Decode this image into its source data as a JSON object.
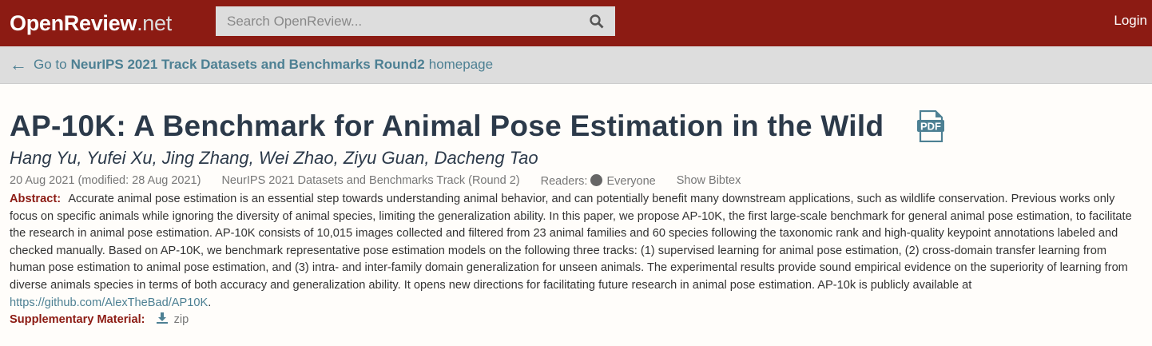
{
  "header": {
    "logo_main": "OpenReview",
    "logo_suffix": ".net",
    "search_placeholder": "Search OpenReview...",
    "login": "Login"
  },
  "nav": {
    "prefix": "Go to",
    "venue": "NeurIPS 2021 Track Datasets and Benchmarks Round2",
    "suffix": "homepage"
  },
  "paper": {
    "title": "AP-10K: A Benchmark for Animal Pose Estimation in the Wild",
    "pdf_label": "PDF",
    "authors": "Hang Yu, Yufei Xu, Jing Zhang, Wei Zhao, Ziyu Guan, Dacheng Tao",
    "date": "20 Aug 2021 (modified: 28 Aug 2021)",
    "venue": "NeurIPS 2021 Datasets and Benchmarks Track (Round 2)",
    "readers_label": "Readers:",
    "readers": "Everyone",
    "bibtex": "Show Bibtex",
    "abstract_label": "Abstract:",
    "abstract": "Accurate animal pose estimation is an essential step towards understanding animal behavior, and can potentially benefit many downstream applications, such as wildlife conservation. Previous works only focus on specific animals while ignoring the diversity of animal species, limiting the generalization ability. In this paper, we propose AP-10K, the first large-scale benchmark for general animal pose estimation, to facilitate the research in animal pose estimation. AP-10K consists of 10,015 images collected and filtered from 23 animal families and 60 species following the taxonomic rank and high-quality keypoint annotations labeled and checked manually. Based on AP-10K, we benchmark representative pose estimation models on the following three tracks: (1) supervised learning for animal pose estimation, (2) cross-domain transfer learning from human pose estimation to animal pose estimation, and (3) intra- and inter-family domain generalization for unseen animals. The experimental results provide sound empirical evidence on the superiority of learning from diverse animals species in terms of both accuracy and generalization ability. It opens new directions for facilitating future research in animal pose estimation. AP-10k is publicly available at",
    "abstract_link": "https://github.com/AlexTheBad/AP10K",
    "abstract_end": ".",
    "supp_label": "Supplementary Material:",
    "supp_link": "zip"
  },
  "colors": {
    "brand": "#8c1b13",
    "link": "#4d8093",
    "title": "#2c3a4a"
  }
}
